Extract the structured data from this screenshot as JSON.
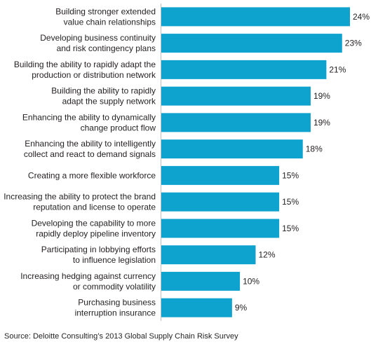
{
  "chart_data": {
    "type": "bar",
    "orientation": "horizontal",
    "categories": [
      [
        "Building stronger extended",
        "value chain relationships"
      ],
      [
        "Developing business continuity",
        "and risk contingency plans"
      ],
      [
        "Building the ability to rapidly adapt the",
        "production or distribution network"
      ],
      [
        "Building the ability to rapidly",
        "adapt the supply network"
      ],
      [
        "Enhancing the ability to dynamically",
        "change product flow"
      ],
      [
        "Enhancing the ability to intelligently",
        "collect and react to demand signals"
      ],
      [
        "Creating a more flexible workforce"
      ],
      [
        "Increasing the ability to protect the brand",
        "reputation and license to operate"
      ],
      [
        "Developing the capability to more",
        "rapidly deploy pipeline inventory"
      ],
      [
        "Participating in lobbying efforts",
        "to influence legislation"
      ],
      [
        "Increasing hedging against currency",
        "or commodity volatility"
      ],
      [
        "Purchasing business",
        "interruption insurance"
      ]
    ],
    "values": [
      24,
      23,
      21,
      19,
      19,
      18,
      15,
      15,
      15,
      12,
      10,
      9
    ],
    "value_labels": [
      "24%",
      "23%",
      "21%",
      "19%",
      "19%",
      "18%",
      "15%",
      "15%",
      "15%",
      "12%",
      "10%",
      "9%"
    ],
    "unit": "%",
    "xlim": [
      0,
      24
    ],
    "grid": false,
    "bar_color": "#0ea2cf"
  },
  "source_note": "Source: Deloitte Consulting’s 2013 Global Supply Chain Risk Survey"
}
